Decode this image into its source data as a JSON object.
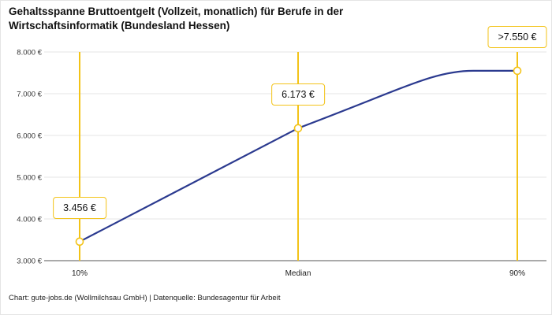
{
  "chart_data": {
    "type": "line",
    "title": "Gehaltsspanne Bruttoentgelt (Vollzeit, monatlich) für Berufe in der Wirtschaftsinformatik (Bundesland Hessen)",
    "categories": [
      "10%",
      "Median",
      "90%"
    ],
    "values": [
      3456,
      6173,
      7550
    ],
    "value_labels": [
      "3.456 €",
      "6.173 €",
      ">7.550 €"
    ],
    "ylim": [
      3000,
      8000
    ],
    "yticks": [
      3000,
      4000,
      5000,
      6000,
      7000,
      8000
    ],
    "ytick_labels": [
      "3.000 €",
      "4.000 €",
      "5.000 €",
      "6.000 €",
      "7.000 €",
      "8.000 €"
    ],
    "grid": true,
    "legend": "none",
    "curve_shape": "rise-then-plateau",
    "marker": "open-circle",
    "colors": {
      "marker_line": "#F3C317",
      "series_line": "#2B3A8F",
      "grid_line": "#E5E5E5",
      "axis_line": "#555555"
    }
  },
  "footer": "Chart: gute-jobs.de (Wollmilchsau GmbH) | Datenquelle: Bundesagentur für Arbeit"
}
